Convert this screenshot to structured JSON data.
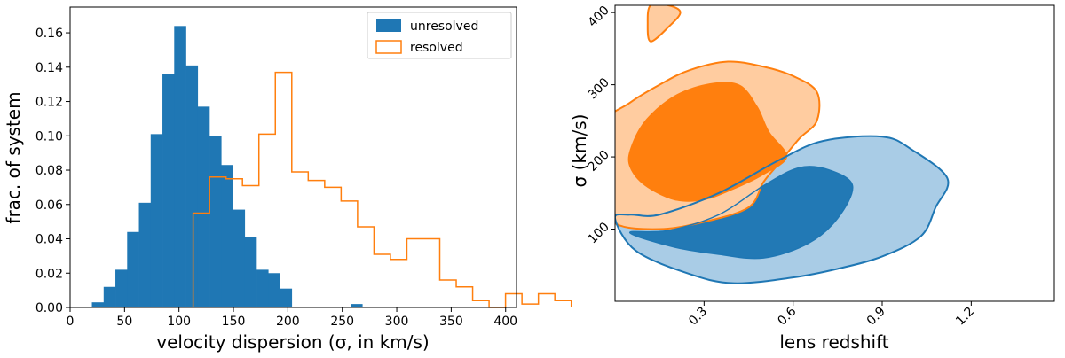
{
  "chart_data": [
    {
      "type": "bar",
      "subtype": "histogram",
      "xlabel": "velocity dispersion (σ, in km/s)",
      "ylabel": "frac. of system",
      "xlim": [
        0,
        410
      ],
      "ylim": [
        0,
        0.175
      ],
      "xticks": [
        0,
        50,
        100,
        150,
        200,
        250,
        300,
        350,
        400
      ],
      "yticks": [
        0.0,
        0.02,
        0.04,
        0.06,
        0.08,
        0.1,
        0.12,
        0.14,
        0.16
      ],
      "xtick_labels": [
        "0",
        "50",
        "100",
        "150",
        "200",
        "250",
        "300",
        "350",
        "400"
      ],
      "ytick_labels": [
        "0.00",
        "0.02",
        "0.04",
        "0.06",
        "0.08",
        "0.10",
        "0.12",
        "0.14",
        "0.16"
      ],
      "legend": "top-right",
      "series": [
        {
          "name": "unresolved",
          "style": "filled",
          "color": "#1f77b4",
          "bin_start": 20,
          "bin_width": 10.8,
          "values": [
            0.003,
            0.012,
            0.022,
            0.044,
            0.061,
            0.101,
            0.136,
            0.164,
            0.141,
            0.117,
            0.1,
            0.083,
            0.057,
            0.041,
            0.022,
            0.02,
            0.011,
            0.0,
            0.0,
            0.0,
            0.0,
            0.0,
            0.002
          ]
        },
        {
          "name": "resolved",
          "style": "step",
          "color": "#ff7f0e",
          "bin_start": 113,
          "bin_width": 15.1,
          "values": [
            0.055,
            0.076,
            0.075,
            0.071,
            0.101,
            0.137,
            0.079,
            0.074,
            0.07,
            0.062,
            0.047,
            0.031,
            0.028,
            0.04,
            0.04,
            0.016,
            0.012,
            0.004,
            0.0,
            0.008,
            0.002,
            0.008,
            0.004
          ]
        }
      ]
    },
    {
      "type": "contour",
      "xlabel": "lens redshift",
      "ylabel": "σ (km/s)",
      "xlim": [
        0.0,
        1.48
      ],
      "ylim": [
        0,
        410
      ],
      "xticks": [
        0.3,
        0.6,
        0.9,
        1.2
      ],
      "yticks": [
        100,
        200,
        300,
        400
      ],
      "xtick_labels": [
        "0.3",
        "0.6",
        "0.9",
        "1.2"
      ],
      "ytick_labels": [
        "100",
        "200",
        "300",
        "400"
      ],
      "series": [
        {
          "name": "unresolved",
          "color": "#1f77b4",
          "outer_fill": "#a9cce6",
          "inner_fill": "#2279b5",
          "outer": [
            [
              0.15,
              120
            ],
            [
              0.35,
              150
            ],
            [
              0.55,
              195
            ],
            [
              0.7,
              222
            ],
            [
              0.9,
              228
            ],
            [
              1.0,
              210
            ],
            [
              1.12,
              170
            ],
            [
              1.08,
              130
            ],
            [
              1.03,
              90
            ],
            [
              0.9,
              62
            ],
            [
              0.75,
              45
            ],
            [
              0.6,
              33
            ],
            [
              0.4,
              25
            ],
            [
              0.25,
              38
            ],
            [
              0.07,
              70
            ],
            [
              0.0,
              115
            ],
            [
              0.05,
              120
            ]
          ],
          "inner": [
            [
              0.18,
              98
            ],
            [
              0.35,
              120
            ],
            [
              0.5,
              160
            ],
            [
              0.62,
              185
            ],
            [
              0.72,
              182
            ],
            [
              0.8,
              160
            ],
            [
              0.75,
              115
            ],
            [
              0.65,
              80
            ],
            [
              0.5,
              60
            ],
            [
              0.35,
              65
            ],
            [
              0.2,
              75
            ],
            [
              0.05,
              95
            ]
          ]
        },
        {
          "name": "resolved",
          "color": "#ff7f0e",
          "outer_fill": "#ffcca0",
          "inner_fill": "#ff7f0e",
          "outer": [
            [
              -0.05,
              240
            ],
            [
              0.05,
              275
            ],
            [
              0.15,
              300
            ],
            [
              0.25,
              320
            ],
            [
              0.38,
              332
            ],
            [
              0.5,
              325
            ],
            [
              0.6,
              312
            ],
            [
              0.68,
              290
            ],
            [
              0.68,
              250
            ],
            [
              0.62,
              225
            ],
            [
              0.55,
              190
            ],
            [
              0.5,
              165
            ],
            [
              0.45,
              130
            ],
            [
              0.3,
              110
            ],
            [
              0.15,
              100
            ],
            [
              0.0,
              108
            ],
            [
              -0.05,
              150
            ]
          ],
          "inner": [
            [
              0.05,
              210
            ],
            [
              0.1,
              250
            ],
            [
              0.2,
              285
            ],
            [
              0.32,
              302
            ],
            [
              0.42,
              300
            ],
            [
              0.48,
              270
            ],
            [
              0.52,
              235
            ],
            [
              0.58,
              200
            ],
            [
              0.5,
              175
            ],
            [
              0.4,
              155
            ],
            [
              0.3,
              140
            ],
            [
              0.2,
              140
            ],
            [
              0.1,
              160
            ],
            [
              0.05,
              185
            ]
          ],
          "island": [
            [
              0.12,
              360
            ],
            [
              0.18,
              380
            ],
            [
              0.22,
              400
            ],
            [
              0.18,
              410
            ],
            [
              0.12,
              410
            ],
            [
              0.11,
              385
            ]
          ],
          "island2": [
            [
              0.1,
              315
            ],
            [
              0.18,
              320
            ],
            [
              0.22,
              330
            ],
            [
              0.18,
              345
            ],
            [
              0.12,
              345
            ],
            [
              0.1,
              330
            ]
          ]
        }
      ]
    }
  ]
}
